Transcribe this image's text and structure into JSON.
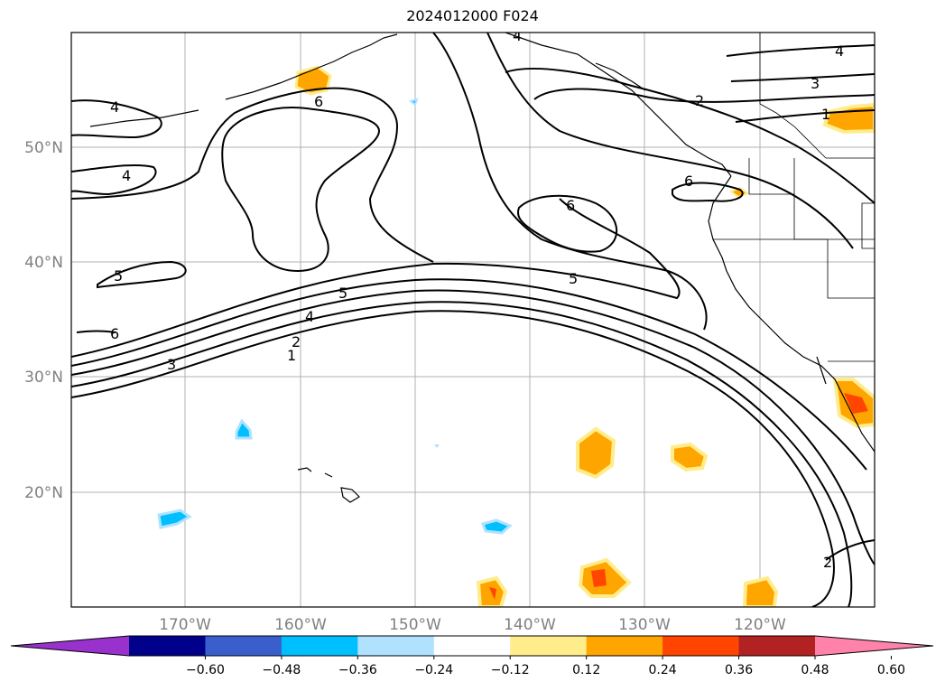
{
  "title": "2024012000 F024",
  "lat_labels": [
    "50°N",
    "40°N",
    "30°N",
    "20°N"
  ],
  "lon_labels": [
    "170°W",
    "160°W",
    "150°W",
    "140°W",
    "130°W",
    "120°W"
  ],
  "contour_labels": [
    "4",
    "4",
    "6",
    "5",
    "6",
    "2",
    "3",
    "1",
    "4",
    "6",
    "6",
    "5",
    "5",
    "4",
    "3",
    "2",
    "1",
    "4",
    "2"
  ],
  "colorbar": {
    "ticks": [
      "−0.60",
      "−0.48",
      "−0.36",
      "−0.24",
      "−0.12",
      "0.12",
      "0.24",
      "0.36",
      "0.48",
      "0.60"
    ],
    "colors": [
      "#9932cc",
      "#00008b",
      "#3a5fcd",
      "#00bfff",
      "#b0e2ff",
      "#ffffff",
      "#ffec8b",
      "#ffa500",
      "#ff4500",
      "#b22222",
      "#ff82ab"
    ]
  }
}
